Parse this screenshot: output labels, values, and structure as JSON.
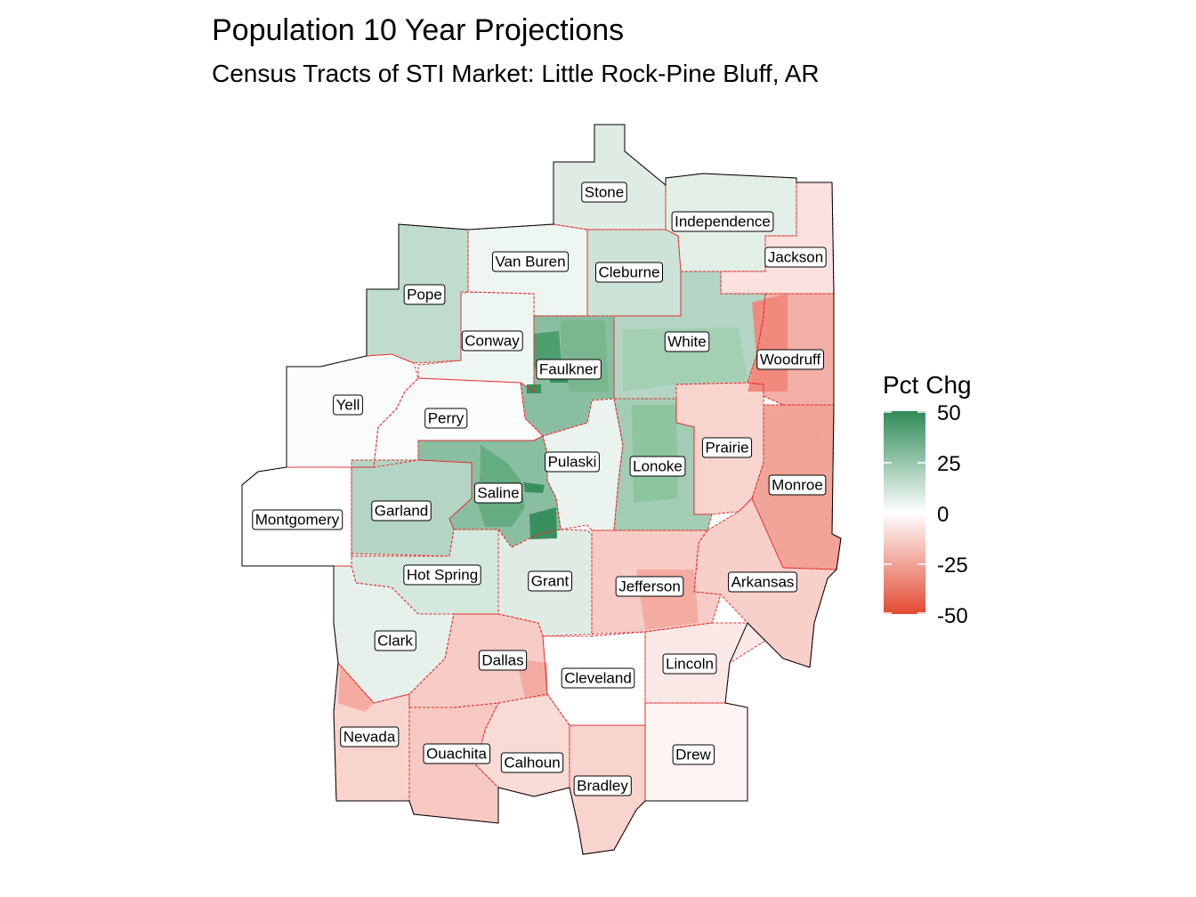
{
  "title": "Population 10 Year Projections",
  "subtitle": "Census Tracts of STI Market: Little Rock-Pine Bluff, AR",
  "legend": {
    "title": "Pct Chg",
    "breaks": [
      "50",
      "25",
      "0",
      "-25",
      "-50"
    ],
    "limits": [
      -50,
      50
    ],
    "low_color": "#e34a33",
    "mid_color": "#ffffff",
    "high_color": "#2e8b57"
  },
  "colors": {
    "county_border": "#e03030",
    "outline": "#000000",
    "label_background": "#ffffff"
  },
  "map": {
    "counties": [
      {
        "name": "Stone",
        "pct_chg": 8
      },
      {
        "name": "Independence",
        "pct_chg": 7
      },
      {
        "name": "Jackson",
        "pct_chg": -8
      },
      {
        "name": "Van Buren",
        "pct_chg": 4
      },
      {
        "name": "Cleburne",
        "pct_chg": 12
      },
      {
        "name": "Pope",
        "pct_chg": 15
      },
      {
        "name": "Conway",
        "pct_chg": 4
      },
      {
        "name": "White",
        "pct_chg": 18
      },
      {
        "name": "Woodruff",
        "pct_chg": -22
      },
      {
        "name": "Faulkner",
        "pct_chg": 28
      },
      {
        "name": "Yell",
        "pct_chg": 1
      },
      {
        "name": "Perry",
        "pct_chg": 1
      },
      {
        "name": "Prairie",
        "pct_chg": -12
      },
      {
        "name": "Pulaski",
        "pct_chg": 5
      },
      {
        "name": "Lonoke",
        "pct_chg": 22
      },
      {
        "name": "Monroe",
        "pct_chg": -25
      },
      {
        "name": "Saline",
        "pct_chg": 28
      },
      {
        "name": "Garland",
        "pct_chg": 18
      },
      {
        "name": "Montgomery",
        "pct_chg": 0
      },
      {
        "name": "Hot Spring",
        "pct_chg": 10
      },
      {
        "name": "Grant",
        "pct_chg": 8
      },
      {
        "name": "Jefferson",
        "pct_chg": -14
      },
      {
        "name": "Arkansas",
        "pct_chg": -13
      },
      {
        "name": "Clark",
        "pct_chg": 6
      },
      {
        "name": "Dallas",
        "pct_chg": -14
      },
      {
        "name": "Cleveland",
        "pct_chg": 0
      },
      {
        "name": "Lincoln",
        "pct_chg": -6
      },
      {
        "name": "Nevada",
        "pct_chg": -12
      },
      {
        "name": "Ouachita",
        "pct_chg": -15
      },
      {
        "name": "Calhoun",
        "pct_chg": -10
      },
      {
        "name": "Bradley",
        "pct_chg": -12
      },
      {
        "name": "Drew",
        "pct_chg": -3
      }
    ]
  }
}
